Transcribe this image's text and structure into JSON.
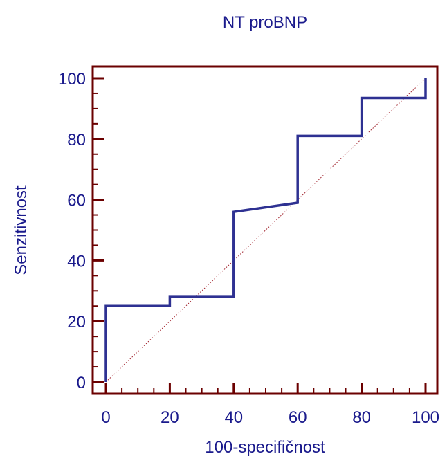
{
  "chart_data": {
    "type": "line",
    "title": "NT proBNP",
    "xlabel": "100-specifičnost",
    "ylabel": "Senzitivnost",
    "xlim": [
      0,
      100
    ],
    "ylim": [
      0,
      100
    ],
    "x_ticks": [
      "0",
      "20",
      "40",
      "60",
      "80",
      "100"
    ],
    "y_ticks": [
      "0",
      "20",
      "40",
      "60",
      "80",
      "100"
    ],
    "grid": false,
    "legend": "none",
    "series": [
      {
        "style": "step",
        "x": [
          0,
          0,
          20,
          20,
          40,
          40,
          60,
          60,
          80,
          80,
          100,
          100
        ],
        "y": [
          0,
          25,
          25,
          28,
          28,
          56,
          59,
          81,
          81,
          93.5,
          93.5,
          100
        ]
      },
      {
        "style": "dotted-diagonal",
        "x": [
          0,
          100
        ],
        "y": [
          0,
          100
        ]
      }
    ],
    "colors": {
      "curve": "#2e3192",
      "diagonal": "#a0202a",
      "frame": "#6b0000",
      "text": "#1a1a8c"
    }
  }
}
